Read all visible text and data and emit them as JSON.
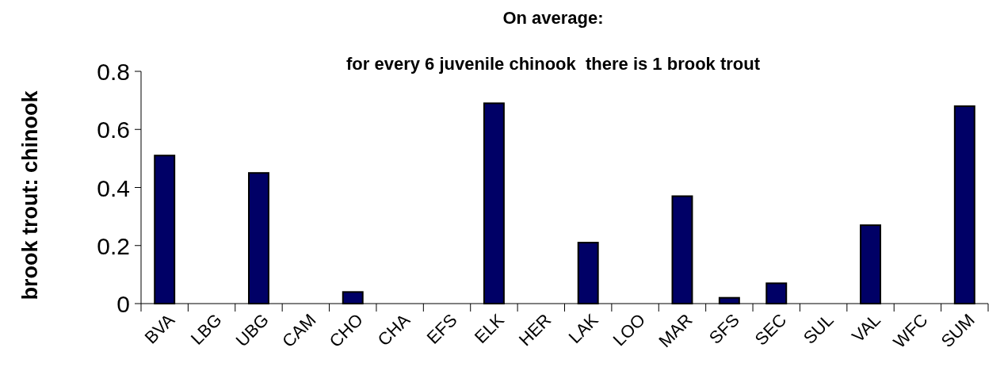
{
  "chart_data": {
    "type": "bar",
    "title": "On average:",
    "subtitle": "for every 6 juvenile chinook  there is 1 brook trout",
    "ylabel": "brook trout: chinook",
    "categories": [
      "BVA",
      "LBG",
      "UBG",
      "CAM",
      "CHO",
      "CHA",
      "EFS",
      "ELK",
      "HER",
      "LAK",
      "LOO",
      "MAR",
      "SFS",
      "SEC",
      "SUL",
      "VAL",
      "WFC",
      "SUM"
    ],
    "values": [
      0.51,
      0,
      0.45,
      0,
      0.04,
      0,
      0,
      0.69,
      0,
      0.21,
      0,
      0.37,
      0.02,
      0.07,
      0,
      0.27,
      0,
      0.68
    ],
    "color": "#000066",
    "ylim": [
      0,
      0.8
    ],
    "yticks": [
      0,
      0.2,
      0.4,
      0.6,
      0.8
    ],
    "grid": false
  }
}
